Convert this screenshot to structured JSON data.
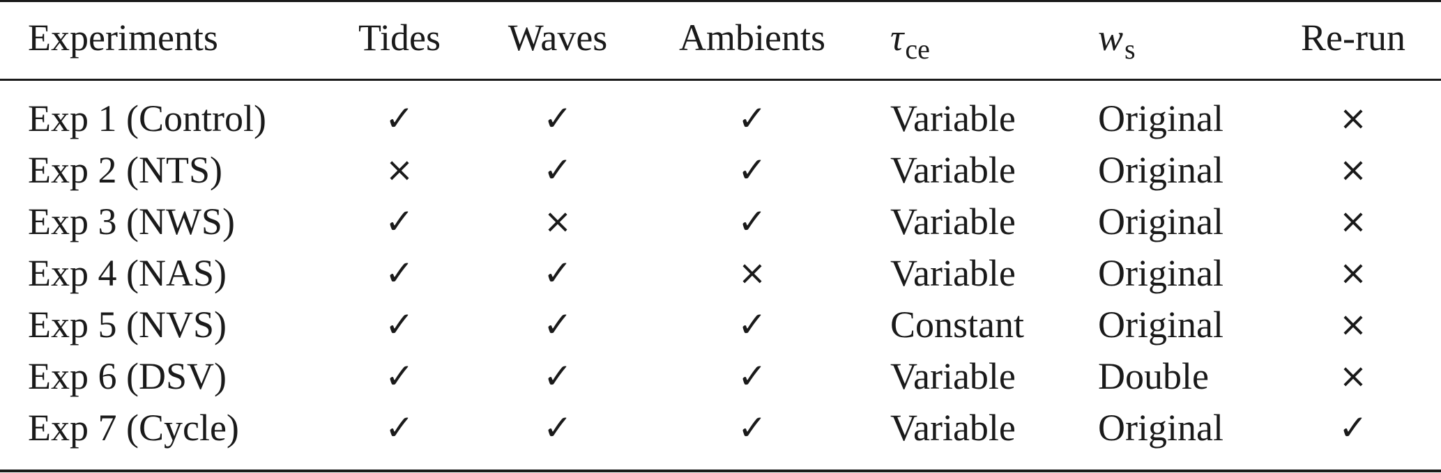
{
  "table": {
    "headers": {
      "experiments": "Experiments",
      "tides": "Tides",
      "waves": "Waves",
      "ambients": "Ambients",
      "tau_symbol": "τ",
      "tau_sub": "ce",
      "ws_symbol": "w",
      "ws_sub": "s",
      "rerun": "Re-run"
    },
    "rows": [
      {
        "experiment": "Exp 1 (Control)",
        "tides": "✓",
        "waves": "✓",
        "ambients": "✓",
        "tau_ce": "Variable",
        "w_s": "Original",
        "rerun": "×"
      },
      {
        "experiment": "Exp 2 (NTS)",
        "tides": "×",
        "waves": "✓",
        "ambients": "✓",
        "tau_ce": "Variable",
        "w_s": "Original",
        "rerun": "×"
      },
      {
        "experiment": "Exp 3 (NWS)",
        "tides": "✓",
        "waves": "×",
        "ambients": "✓",
        "tau_ce": "Variable",
        "w_s": "Original",
        "rerun": "×"
      },
      {
        "experiment": "Exp 4 (NAS)",
        "tides": "✓",
        "waves": "✓",
        "ambients": "×",
        "tau_ce": "Variable",
        "w_s": "Original",
        "rerun": "×"
      },
      {
        "experiment": "Exp 5 (NVS)",
        "tides": "✓",
        "waves": "✓",
        "ambients": "✓",
        "tau_ce": "Constant",
        "w_s": "Original",
        "rerun": "×"
      },
      {
        "experiment": "Exp 6 (DSV)",
        "tides": "✓",
        "waves": "✓",
        "ambients": "✓",
        "tau_ce": "Variable",
        "w_s": "Double",
        "rerun": "×"
      },
      {
        "experiment": "Exp 7 (Cycle)",
        "tides": "✓",
        "waves": "✓",
        "ambients": "✓",
        "tau_ce": "Variable",
        "w_s": "Original",
        "rerun": "✓"
      }
    ]
  }
}
